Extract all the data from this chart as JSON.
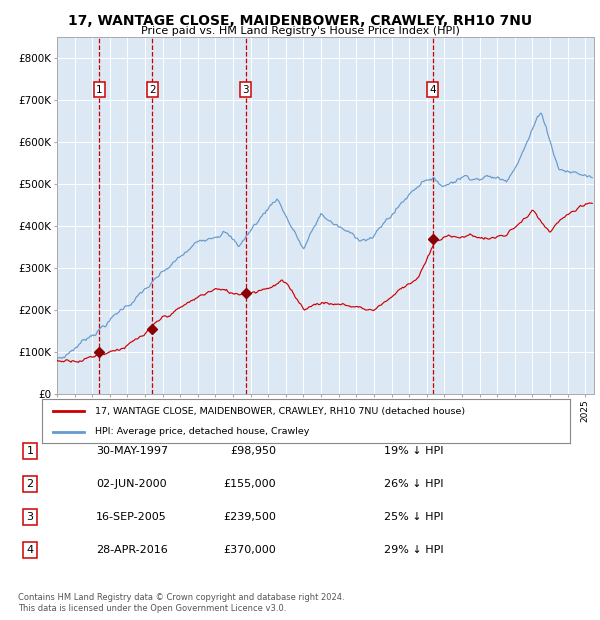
{
  "title": "17, WANTAGE CLOSE, MAIDENBOWER, CRAWLEY, RH10 7NU",
  "subtitle": "Price paid vs. HM Land Registry's House Price Index (HPI)",
  "background_color": "#dce9f5",
  "hpi_color": "#6699cc",
  "price_color": "#cc0000",
  "sale_marker_color": "#8b0000",
  "vline_color": "#cc0000",
  "grid_color": "#ffffff",
  "ylim": [
    0,
    850000
  ],
  "yticks": [
    0,
    100000,
    200000,
    300000,
    400000,
    500000,
    600000,
    700000,
    800000
  ],
  "ytick_labels": [
    "£0",
    "£100K",
    "£200K",
    "£300K",
    "£400K",
    "£500K",
    "£600K",
    "£700K",
    "£800K"
  ],
  "xlim_start": 1995.0,
  "xlim_end": 2025.5,
  "sale_dates": [
    1997.41,
    2000.42,
    2005.71,
    2016.33
  ],
  "sale_prices": [
    98950,
    155000,
    239500,
    370000
  ],
  "sale_labels": [
    "1",
    "2",
    "3",
    "4"
  ],
  "legend_property_label": "17, WANTAGE CLOSE, MAIDENBOWER, CRAWLEY, RH10 7NU (detached house)",
  "legend_hpi_label": "HPI: Average price, detached house, Crawley",
  "table_rows": [
    {
      "num": "1",
      "date": "30-MAY-1997",
      "price": "£98,950",
      "pct": "19% ↓ HPI"
    },
    {
      "num": "2",
      "date": "02-JUN-2000",
      "price": "£155,000",
      "pct": "26% ↓ HPI"
    },
    {
      "num": "3",
      "date": "16-SEP-2005",
      "price": "£239,500",
      "pct": "25% ↓ HPI"
    },
    {
      "num": "4",
      "date": "28-APR-2016",
      "price": "£370,000",
      "pct": "29% ↓ HPI"
    }
  ],
  "footnote": "Contains HM Land Registry data © Crown copyright and database right 2024.\nThis data is licensed under the Open Government Licence v3.0."
}
